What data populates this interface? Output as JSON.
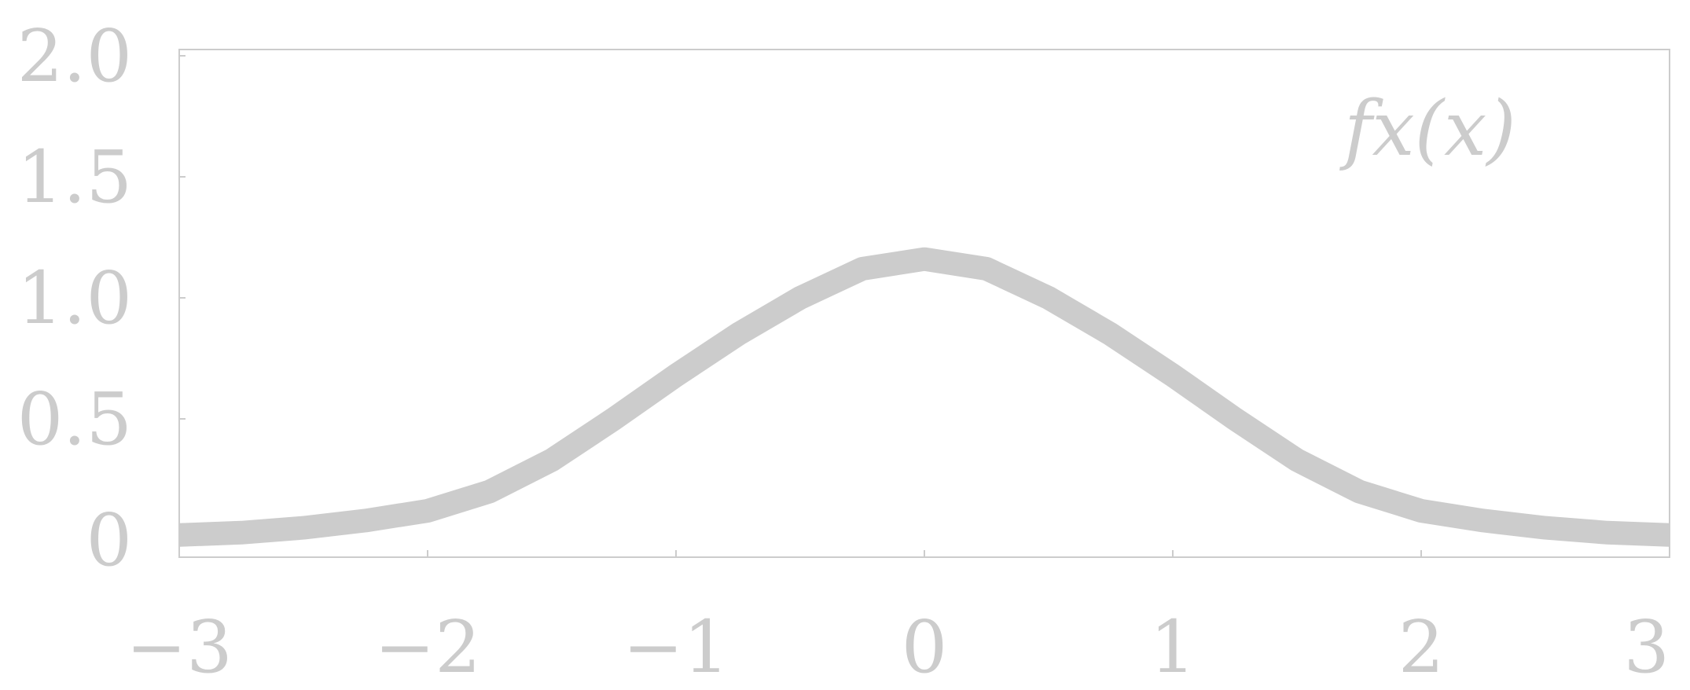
{
  "chart_data": {
    "type": "line",
    "title": "",
    "xlabel": "",
    "ylabel": "",
    "xlim": [
      -3,
      3
    ],
    "ylim": [
      0,
      2
    ],
    "xticks": [
      -3,
      -2,
      -1,
      0,
      1,
      2,
      3
    ],
    "xtick_labels": [
      "−3",
      "−2",
      "−1",
      "0",
      "1",
      "2",
      "3"
    ],
    "yticks": [
      0,
      0.5,
      1,
      1.5,
      2
    ],
    "ytick_labels": [
      "0",
      "0.5",
      "1.0",
      "1.5",
      "2.0"
    ],
    "grid": false,
    "legend_position": "top-right",
    "colors": {
      "line": "#cccccc",
      "axes": "#cccccc",
      "text": "#cccccc"
    },
    "series": [
      {
        "name": "fx(x)",
        "x": [
          -3.0,
          -2.75,
          -2.5,
          -2.25,
          -2.0,
          -1.75,
          -1.5,
          -1.25,
          -1.0,
          -0.75,
          -0.5,
          -0.25,
          0.0,
          0.25,
          0.5,
          0.75,
          1.0,
          1.25,
          1.5,
          1.75,
          2.0,
          2.25,
          2.5,
          2.75,
          3.0
        ],
        "y": [
          0.02,
          0.03,
          0.05,
          0.08,
          0.12,
          0.2,
          0.33,
          0.5,
          0.68,
          0.85,
          1.0,
          1.12,
          1.16,
          1.12,
          1.0,
          0.85,
          0.68,
          0.5,
          0.33,
          0.2,
          0.12,
          0.08,
          0.05,
          0.03,
          0.02
        ]
      }
    ]
  }
}
